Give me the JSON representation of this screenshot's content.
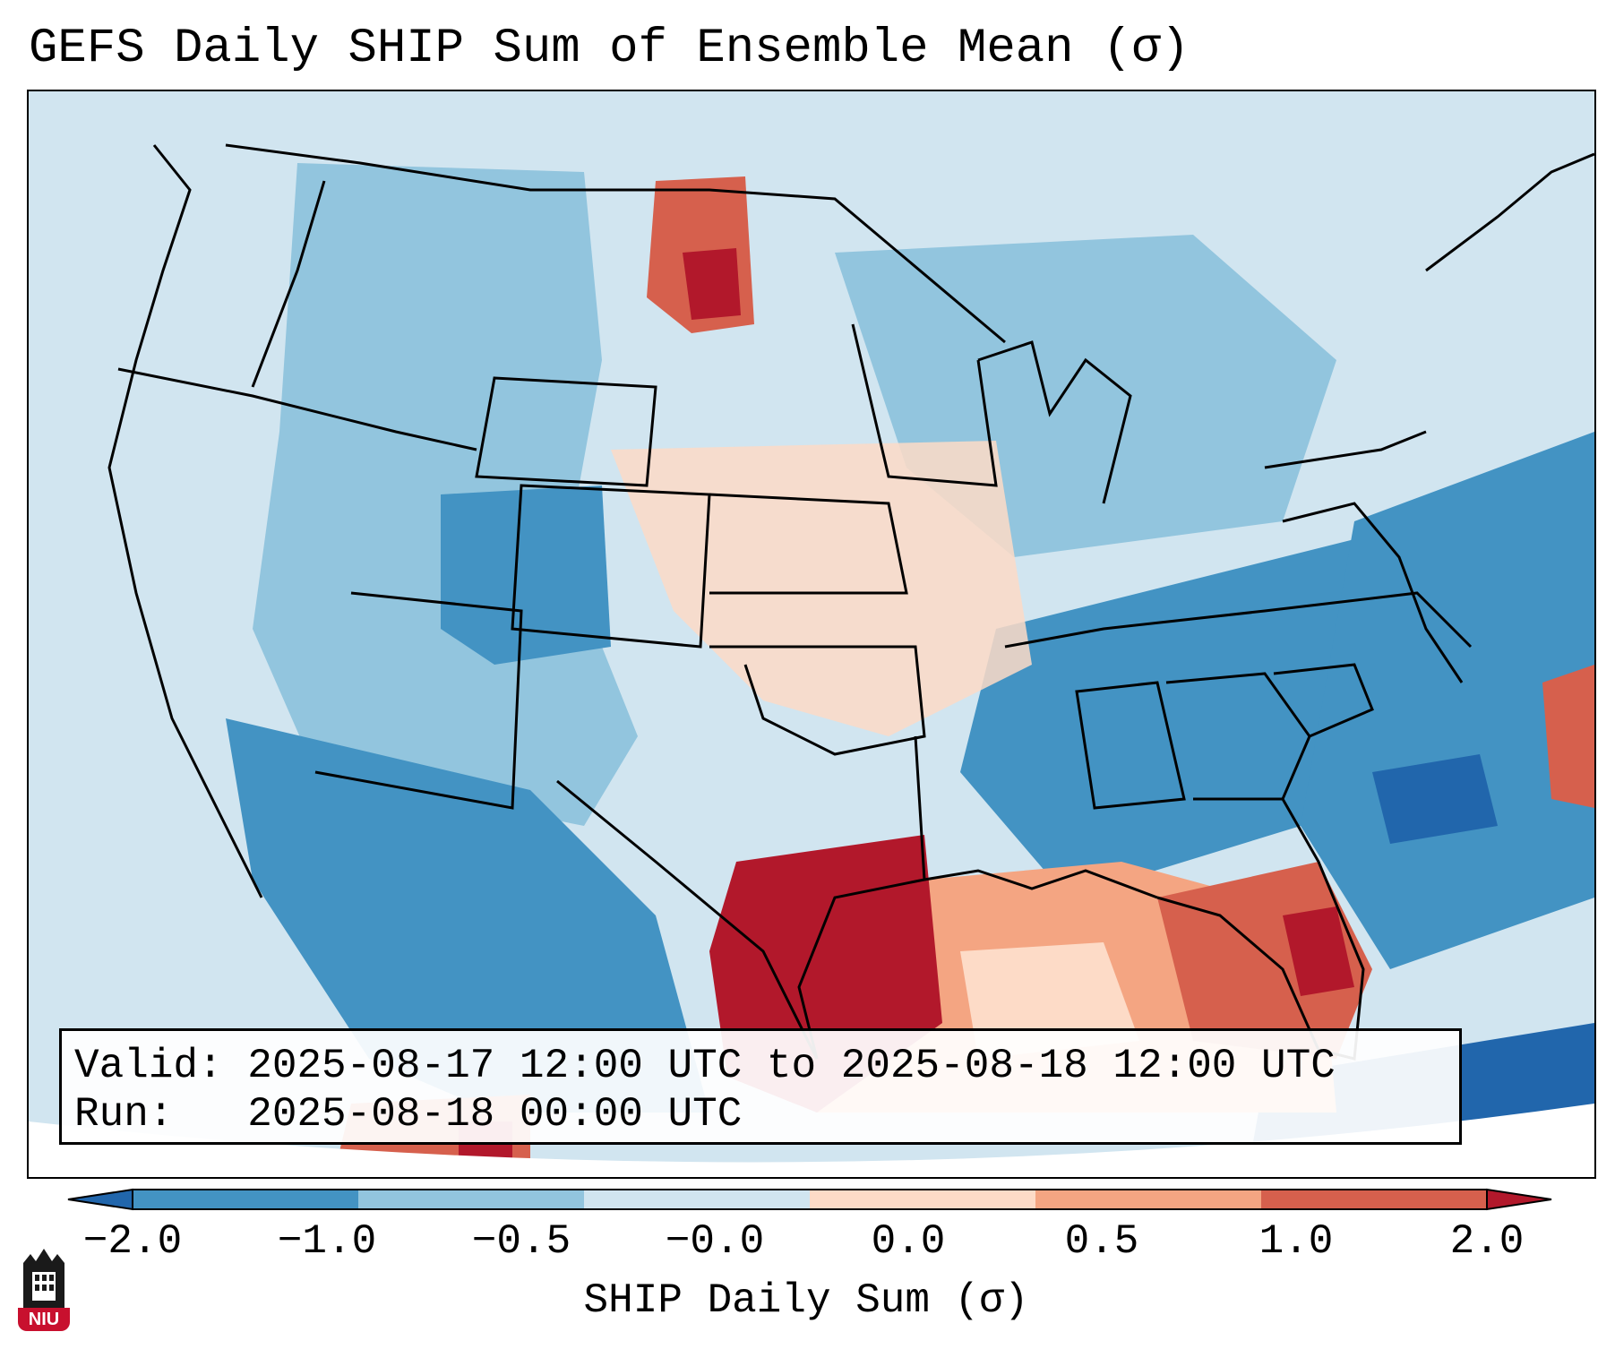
{
  "title": "GEFS Daily SHIP Sum of Ensemble Mean (σ)",
  "info": {
    "valid_line": "Valid: 2025-08-17 12:00 UTC to 2025-08-18 12:00 UTC",
    "run_line": "Run:   2025-08-18 00:00 UTC"
  },
  "colorbar": {
    "label": "SHIP Daily Sum (σ)",
    "tick_labels": [
      "−2.0",
      "−1.0",
      "−0.5",
      "−0.0",
      "0.0",
      "0.5",
      "1.0",
      "2.0"
    ],
    "colors": [
      "#2166ac",
      "#4393c3",
      "#92c5de",
      "#d1e5f0",
      "#fddbc7",
      "#f4a582",
      "#d6604d",
      "#b2182b"
    ],
    "extend": "both"
  },
  "logo": {
    "text": "NIU"
  },
  "map_data": {
    "variable": "SHIP Daily Sum (σ)",
    "regions": [
      {
        "name": "Texas coast / Houston",
        "value": 2.0
      },
      {
        "name": "Florida peninsula",
        "value": 1.5
      },
      {
        "name": "North Dakota",
        "value": 1.5
      },
      {
        "name": "Northern Gulf of Mexico",
        "value": 0.75
      },
      {
        "name": "Iowa",
        "value": 0.25
      },
      {
        "name": "Colorado",
        "value": -1.5
      },
      {
        "name": "Southeast Atlantic states",
        "value": -1.5
      },
      {
        "name": "Western Atlantic near Bahamas",
        "value": 1.5
      }
    ]
  }
}
